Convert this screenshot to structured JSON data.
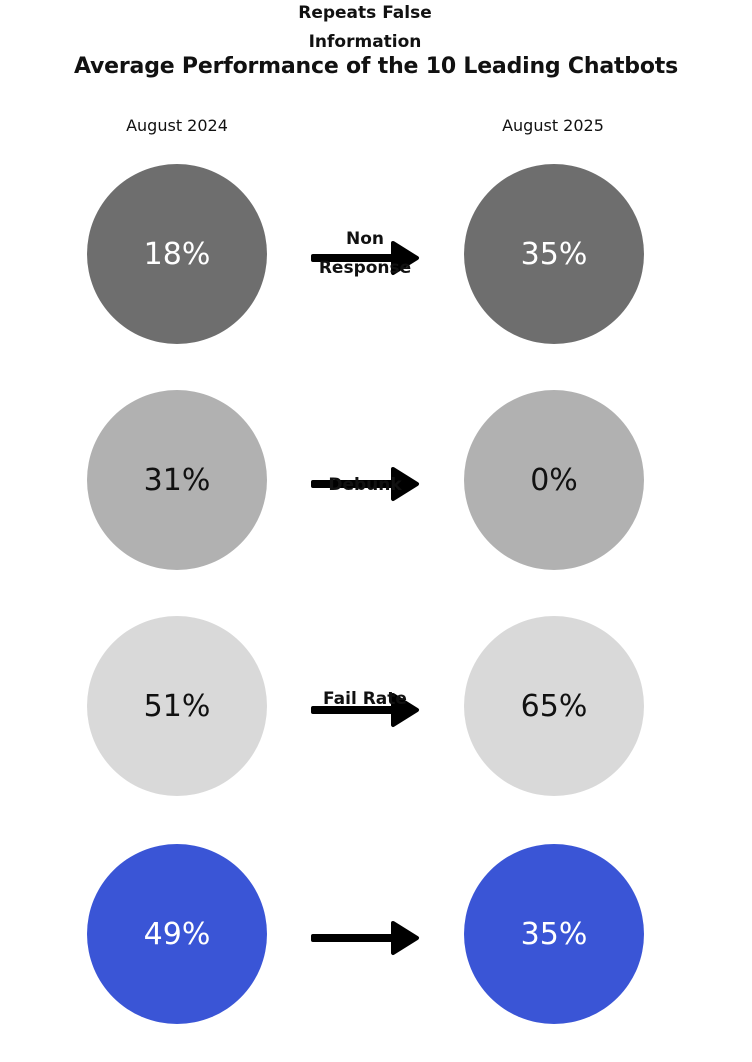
{
  "chart_data": {
    "type": "comparison",
    "title": "Average Performance of the 10 Leading Chatbots",
    "periods": [
      "August 2024",
      "August 2025"
    ],
    "metrics": [
      {
        "label": "Repeats False\nInformation",
        "before": "18%",
        "after": "35%",
        "color": "#6e6e6e",
        "text_color": "#ffffff"
      },
      {
        "label": "Non\nResponse",
        "before": "31%",
        "after": "0%",
        "color": "#b1b1b1",
        "text_color": "#111111"
      },
      {
        "label": "Debunk",
        "before": "51%",
        "after": "65%",
        "color": "#d9d9d9",
        "text_color": "#111111"
      },
      {
        "label": "Fail Rate",
        "before": "49%",
        "after": "35%",
        "color": "#3a55d6",
        "text_color": "#ffffff"
      }
    ]
  }
}
